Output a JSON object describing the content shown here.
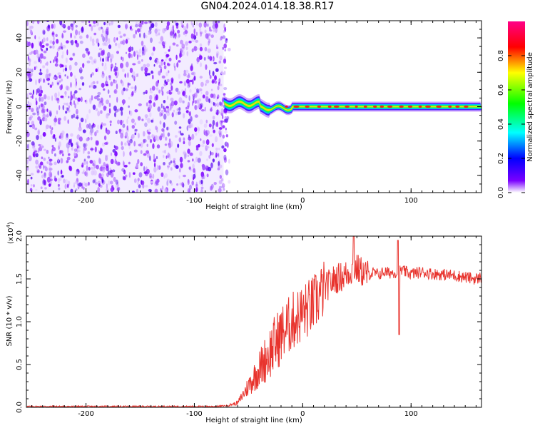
{
  "title": "GN04.2024.014.18.38.R17",
  "chart_data": [
    {
      "type": "heatmap",
      "xlabel": "Height of straight line (km)",
      "ylabel": "Frequency (Hz)",
      "xlim": [
        -255,
        165
      ],
      "ylim": [
        -50,
        50
      ],
      "x_ticks": [
        -200,
        -100,
        0,
        100
      ],
      "y_ticks": [
        -40,
        -20,
        0,
        20,
        40
      ],
      "noise_region_x": [
        -255,
        -73
      ],
      "signal_region_x": [
        -73,
        165
      ],
      "signal_center_frequency": 0,
      "colorbar": {
        "label": "Normalized spectral amplitude",
        "range": [
          0.0,
          1.0
        ],
        "ticks": [
          0.0,
          0.2,
          0.4,
          0.6,
          0.8
        ],
        "colormap": [
          "#ffffff",
          "#7a00ff",
          "#0000ff",
          "#00ffff",
          "#00ff00",
          "#ffff00",
          "#ff0000",
          "#ff0088"
        ]
      }
    },
    {
      "type": "line",
      "xlabel": "Height of straight line (km)",
      "ylabel": "SNR (10 * v/v)",
      "y_multiplier": "(x10",
      "y_multiplier_exp": "4",
      "y_multiplier_close": ")",
      "xlim": [
        -255,
        165
      ],
      "ylim": [
        0,
        2.0
      ],
      "x_ticks": [
        -200,
        -100,
        0,
        100
      ],
      "y_ticks": [
        0.0,
        0.5,
        1.0,
        1.5,
        2.0
      ],
      "line_color": "#e8332d",
      "series": [
        {
          "x": [
            -255,
            -200,
            -150,
            -100,
            -80,
            -70,
            -60,
            -55,
            -50,
            -45,
            -40,
            -35,
            -30,
            -25,
            -20,
            -15,
            -10,
            -5,
            0,
            5,
            10,
            15,
            20,
            25,
            30,
            35,
            40,
            45,
            50,
            55,
            60,
            65,
            70,
            75,
            80,
            85,
            88,
            90,
            95,
            100,
            110,
            120,
            130,
            140,
            150,
            160,
            165
          ],
          "values": [
            0.01,
            0.01,
            0.01,
            0.01,
            0.01,
            0.02,
            0.05,
            0.15,
            0.25,
            0.35,
            0.45,
            0.55,
            0.65,
            0.75,
            0.85,
            0.92,
            1.0,
            1.05,
            1.1,
            1.15,
            1.2,
            1.3,
            1.38,
            1.45,
            1.5,
            1.52,
            1.55,
            1.6,
            1.62,
            1.58,
            1.55,
            1.57,
            1.55,
            1.58,
            1.57,
            1.58,
            1.55,
            1.6,
            1.58,
            1.56,
            1.58,
            1.56,
            1.55,
            1.54,
            1.52,
            1.5,
            1.52
          ]
        }
      ]
    }
  ]
}
